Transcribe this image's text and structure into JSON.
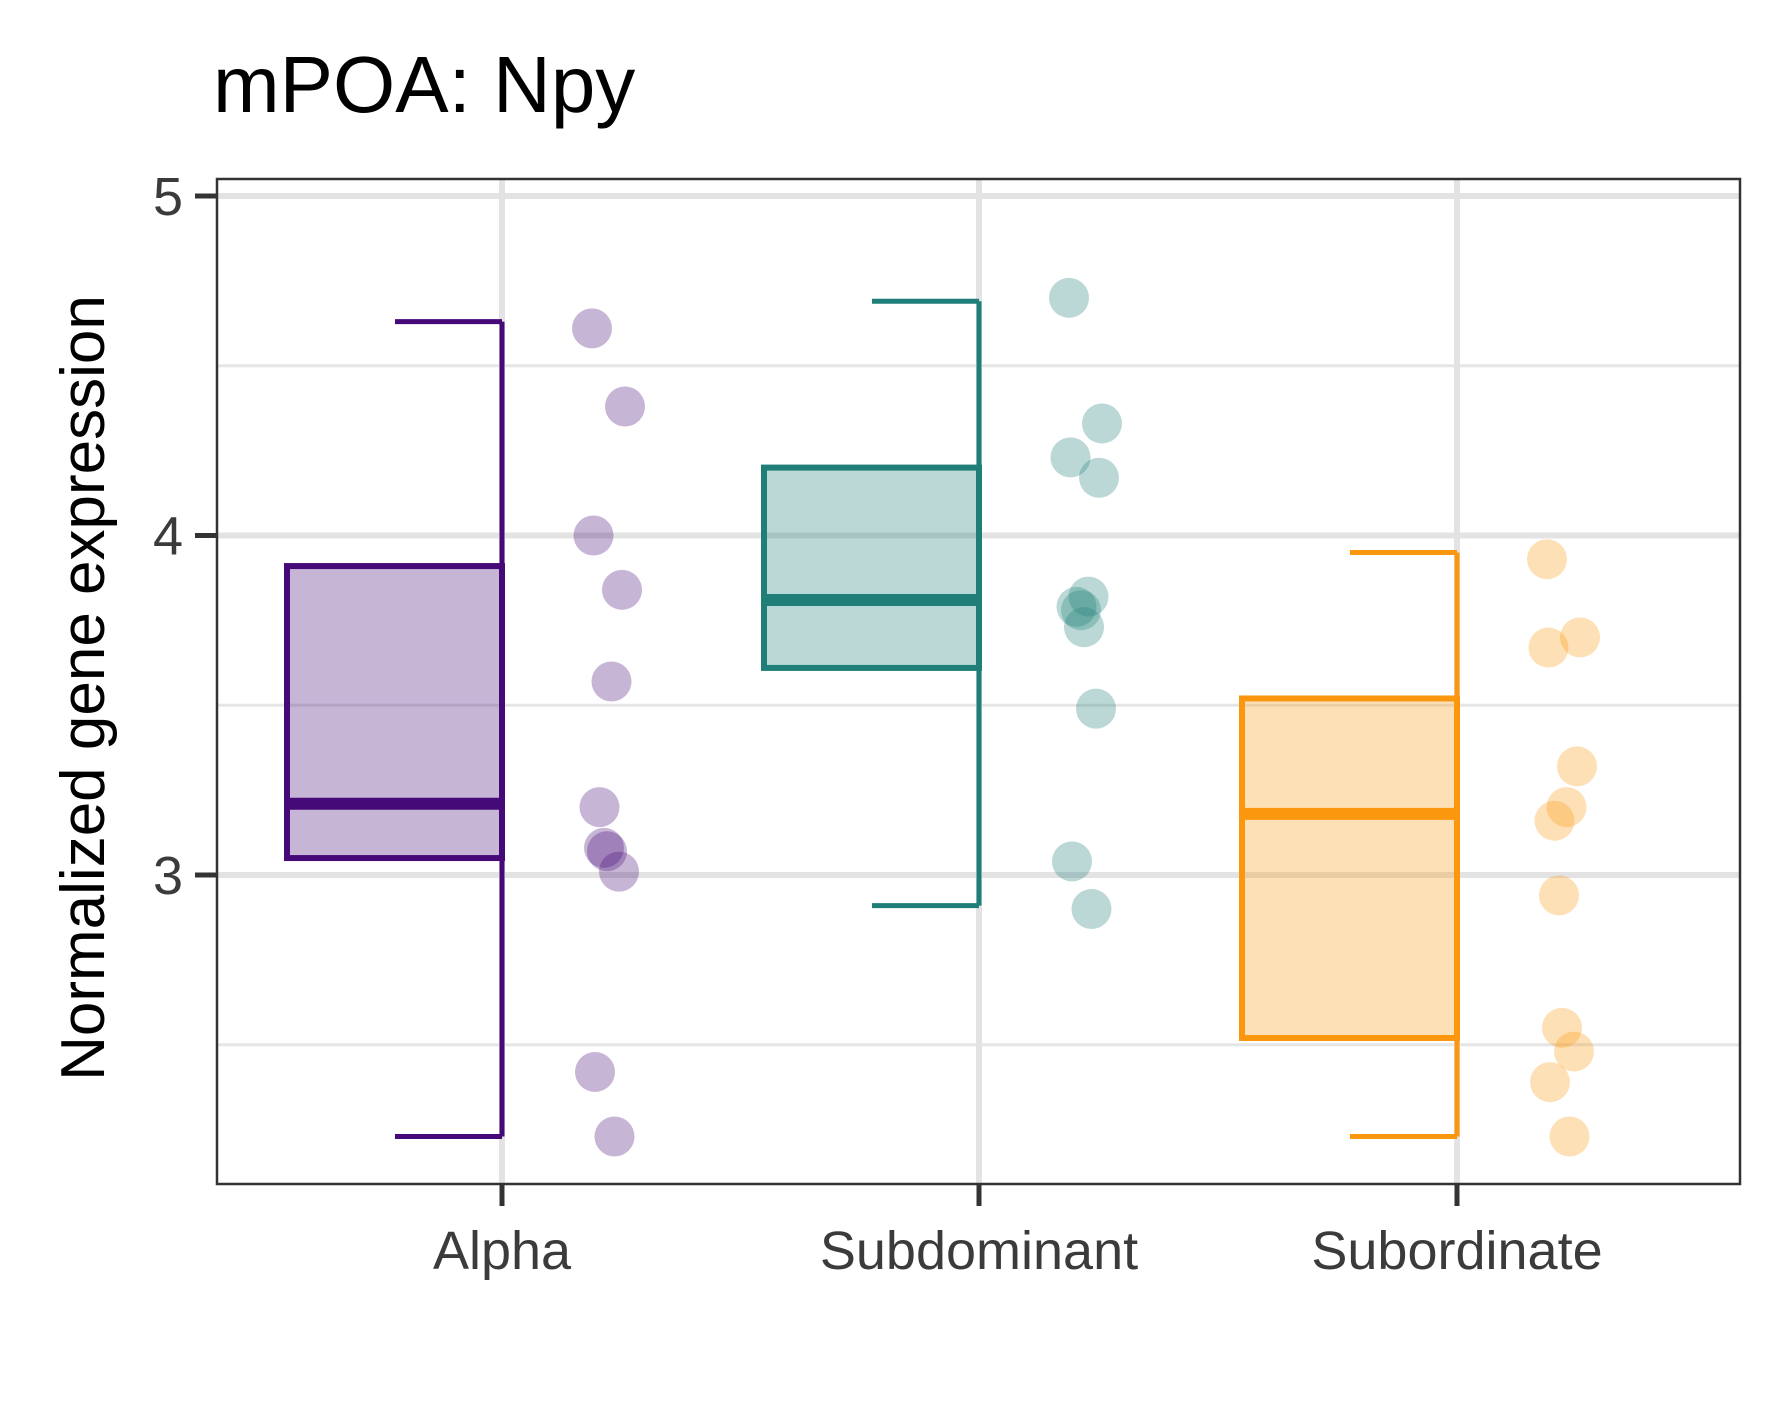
{
  "chart_data": {
    "type": "box",
    "title": "mPOA: Npy",
    "xlabel": "",
    "ylabel": "Normalized gene expression",
    "categories": [
      "Alpha",
      "Subdominant",
      "Subordinate"
    ],
    "yticks": [
      "3",
      "4",
      "5"
    ],
    "ylim": [
      2.09,
      5.05
    ],
    "grid": true,
    "colors": {
      "Alpha": "#450a78",
      "Subdominant": "#1f7f78",
      "Subordinate": "#fb970f"
    },
    "boxes": [
      {
        "group": "Alpha",
        "whisker_low": 2.23,
        "q1": 3.05,
        "median": 3.21,
        "q3": 3.91,
        "whisker_high": 4.63
      },
      {
        "group": "Subdominant",
        "whisker_low": 2.91,
        "q1": 3.61,
        "median": 3.81,
        "q3": 4.2,
        "whisker_high": 4.69
      },
      {
        "group": "Subordinate",
        "whisker_low": 2.23,
        "q1": 2.52,
        "median": 3.18,
        "q3": 3.52,
        "whisker_high": 3.95
      }
    ],
    "points": [
      {
        "group": "Alpha",
        "values": [
          4.61,
          4.38,
          4.0,
          3.84,
          3.57,
          3.2,
          3.08,
          3.07,
          3.01,
          2.42,
          2.23
        ]
      },
      {
        "group": "Subdominant",
        "values": [
          4.7,
          4.33,
          4.23,
          4.17,
          3.82,
          3.79,
          3.78,
          3.73,
          3.49,
          3.04,
          2.9
        ]
      },
      {
        "group": "Subordinate",
        "values": [
          3.93,
          3.7,
          3.67,
          3.32,
          3.2,
          3.16,
          2.94,
          2.55,
          2.48,
          2.39,
          2.23
        ]
      }
    ]
  }
}
